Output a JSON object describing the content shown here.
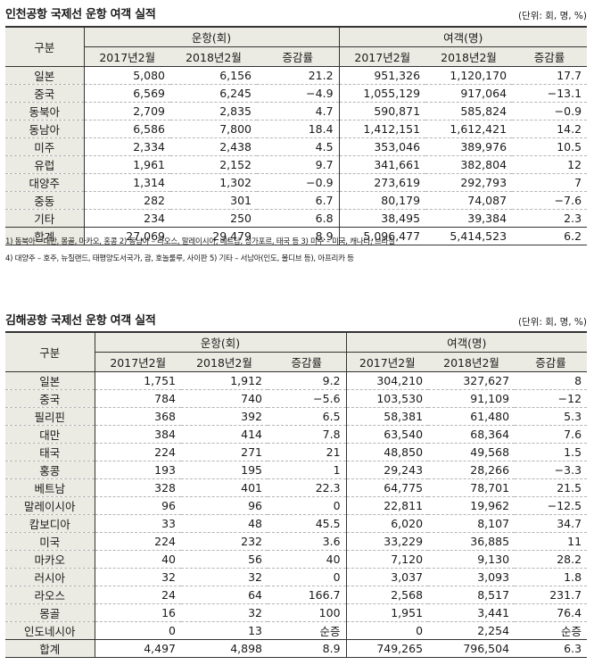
{
  "incheon": {
    "title": "인천공항 국제선 운항 여객 실적",
    "unit": "(단위: 회, 명, %)",
    "headers": {
      "category": "구분",
      "flights": "운항(회)",
      "passengers": "여객(명)",
      "y2017": "2017년2월",
      "y2018": "2018년2월",
      "change": "증감률"
    },
    "rows": [
      {
        "name": "일본",
        "f17": "5,080",
        "f18": "6,156",
        "fc": "21.2",
        "p17": "951,326",
        "p18": "1,120,170",
        "pc": "17.7"
      },
      {
        "name": "중국",
        "f17": "6,569",
        "f18": "6,245",
        "fc": "−4.9",
        "p17": "1,055,129",
        "p18": "917,064",
        "pc": "−13.1"
      },
      {
        "name": "동북아",
        "f17": "2,709",
        "f18": "2,835",
        "fc": "4.7",
        "p17": "590,871",
        "p18": "585,824",
        "pc": "−0.9"
      },
      {
        "name": "동남아",
        "f17": "6,586",
        "f18": "7,800",
        "fc": "18.4",
        "p17": "1,412,151",
        "p18": "1,612,421",
        "pc": "14.2"
      },
      {
        "name": "미주",
        "f17": "2,334",
        "f18": "2,438",
        "fc": "4.5",
        "p17": "353,046",
        "p18": "389,976",
        "pc": "10.5"
      },
      {
        "name": "유럽",
        "f17": "1,961",
        "f18": "2,152",
        "fc": "9.7",
        "p17": "341,661",
        "p18": "382,804",
        "pc": "12"
      },
      {
        "name": "대양주",
        "f17": "1,314",
        "f18": "1,302",
        "fc": "−0.9",
        "p17": "273,619",
        "p18": "292,793",
        "pc": "7"
      },
      {
        "name": "중동",
        "f17": "282",
        "f18": "301",
        "fc": "6.7",
        "p17": "80,179",
        "p18": "74,087",
        "pc": "−7.6"
      },
      {
        "name": "기타",
        "f17": "234",
        "f18": "250",
        "fc": "6.8",
        "p17": "38,495",
        "p18": "39,384",
        "pc": "2.3"
      }
    ],
    "total": {
      "name": "합계",
      "f17": "27,069",
      "f18": "29,479",
      "fc": "8.9",
      "p17": "5,096,477",
      "p18": "5,414,523",
      "pc": "6.2"
    },
    "notes": [
      "1) 동북아 – 대만, 몽골, 마카오, 홍콩   2) 동남아 – 라오스, 말레이시아, 베트남, 싱가포르, 태국 등   3) 미주 – 미국, 캐나다, 브라질",
      "4) 대양주 – 호주, 뉴질랜드, 태평양도서국가, 괌, 호놀룰루, 사이판   5) 기타 – 서남아(인도, 몰디브 등), 아프리카 등"
    ]
  },
  "gimhae": {
    "title": "김해공항 국제선 운항 여객 실적",
    "unit": "(단위: 회, 명, %)",
    "headers": {
      "category": "구분",
      "flights": "운항(회)",
      "passengers": "여객(명)",
      "y2017": "2017년2월",
      "y2018": "2018년2월",
      "change": "증감률"
    },
    "rows": [
      {
        "name": "일본",
        "f17": "1,751",
        "f18": "1,912",
        "fc": "9.2",
        "p17": "304,210",
        "p18": "327,627",
        "pc": "8"
      },
      {
        "name": "중국",
        "f17": "784",
        "f18": "740",
        "fc": "−5.6",
        "p17": "103,530",
        "p18": "91,109",
        "pc": "−12"
      },
      {
        "name": "필리핀",
        "f17": "368",
        "f18": "392",
        "fc": "6.5",
        "p17": "58,381",
        "p18": "61,480",
        "pc": "5.3"
      },
      {
        "name": "대만",
        "f17": "384",
        "f18": "414",
        "fc": "7.8",
        "p17": "63,540",
        "p18": "68,364",
        "pc": "7.6"
      },
      {
        "name": "태국",
        "f17": "224",
        "f18": "271",
        "fc": "21",
        "p17": "48,850",
        "p18": "49,568",
        "pc": "1.5"
      },
      {
        "name": "홍콩",
        "f17": "193",
        "f18": "195",
        "fc": "1",
        "p17": "29,243",
        "p18": "28,266",
        "pc": "−3.3"
      },
      {
        "name": "베트남",
        "f17": "328",
        "f18": "401",
        "fc": "22.3",
        "p17": "64,775",
        "p18": "78,701",
        "pc": "21.5"
      },
      {
        "name": "말레이시아",
        "f17": "96",
        "f18": "96",
        "fc": "0",
        "p17": "22,811",
        "p18": "19,962",
        "pc": "−12.5"
      },
      {
        "name": "캄보디아",
        "f17": "33",
        "f18": "48",
        "fc": "45.5",
        "p17": "6,020",
        "p18": "8,107",
        "pc": "34.7"
      },
      {
        "name": "미국",
        "f17": "224",
        "f18": "232",
        "fc": "3.6",
        "p17": "33,229",
        "p18": "36,885",
        "pc": "11"
      },
      {
        "name": "마카오",
        "f17": "40",
        "f18": "56",
        "fc": "40",
        "p17": "7,120",
        "p18": "9,130",
        "pc": "28.2"
      },
      {
        "name": "러시아",
        "f17": "32",
        "f18": "32",
        "fc": "0",
        "p17": "3,037",
        "p18": "3,093",
        "pc": "1.8"
      },
      {
        "name": "라오스",
        "f17": "24",
        "f18": "64",
        "fc": "166.7",
        "p17": "2,568",
        "p18": "8,517",
        "pc": "231.7"
      },
      {
        "name": "몽골",
        "f17": "16",
        "f18": "32",
        "fc": "100",
        "p17": "1,951",
        "p18": "3,441",
        "pc": "76.4"
      },
      {
        "name": "인도네시아",
        "f17": "0",
        "f18": "13",
        "fc": "순증",
        "p17": "0",
        "p18": "2,254",
        "pc": "순증"
      }
    ],
    "total": {
      "name": "합계",
      "f17": "4,497",
      "f18": "4,898",
      "fc": "8.9",
      "p17": "749,265",
      "p18": "796,504",
      "pc": "6.3"
    }
  }
}
